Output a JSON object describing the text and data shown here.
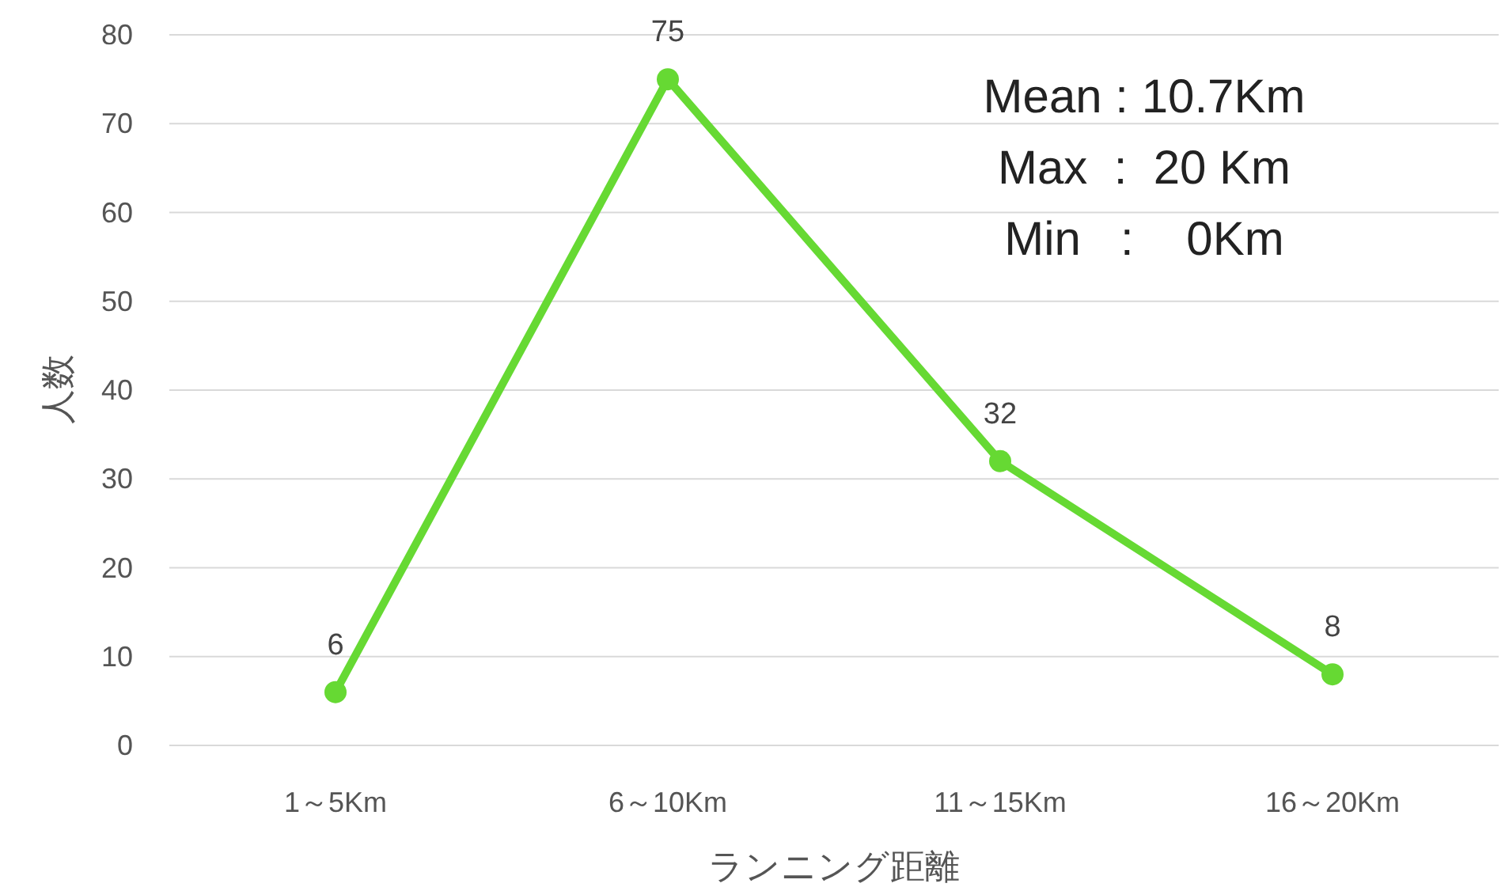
{
  "chart_data": {
    "type": "line",
    "categories": [
      "1～5Km",
      "6～10Km",
      "11～15Km",
      "16～20Km"
    ],
    "values": [
      6,
      75,
      32,
      8
    ],
    "color": "#66d933",
    "ylim": [
      0,
      80
    ],
    "yticks": [
      0,
      10,
      20,
      30,
      40,
      50,
      60,
      70,
      80
    ],
    "grid": "y",
    "marker": "circle",
    "line_style": "solid",
    "data_labels": true,
    "xlabel": "ランニング距離",
    "ylabel": "人数",
    "annotations": [
      "Mean : 10.7Km",
      "Max  :  20 Km",
      "Min   :    0Km"
    ]
  }
}
